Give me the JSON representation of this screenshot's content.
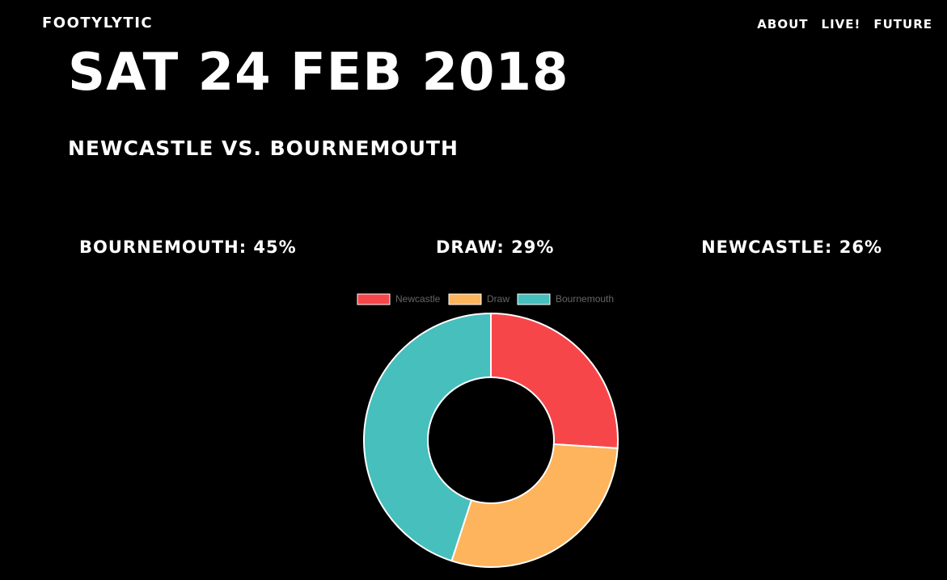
{
  "header": {
    "brand": "FOOTYLYTIC",
    "nav": [
      {
        "label": "ABOUT"
      },
      {
        "label": "LIVE!"
      },
      {
        "label": "FUTURE"
      }
    ]
  },
  "match": {
    "date": "SAT 24 FEB 2018",
    "fixture": "NEWCASTLE VS. BOURNEMOUTH"
  },
  "probabilities": {
    "away": "BOURNEMOUTH: 45%",
    "draw": "DRAW: 29%",
    "home": "NEWCASTLE: 26%"
  },
  "colors": {
    "newcastle": "#f7464a",
    "draw": "#fdb45c",
    "bournemouth": "#46bfbd",
    "segment_border": "#ffffff"
  },
  "chart_data": {
    "type": "pie",
    "variant": "doughnut",
    "categories": [
      "Newcastle",
      "Draw",
      "Bournemouth"
    ],
    "values": [
      26,
      29,
      45
    ],
    "legend_position": "top"
  }
}
